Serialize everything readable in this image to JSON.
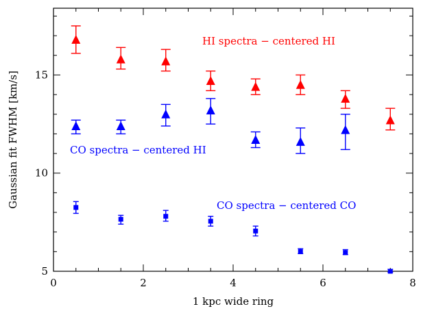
{
  "chart_data": {
    "type": "scatter",
    "xlabel": "1 kpc wide ring",
    "ylabel": "Gaussian fit FWHM [km/s]",
    "xlim": [
      0,
      8
    ],
    "ylim": [
      5,
      18.4
    ],
    "xticks": [
      0,
      2,
      4,
      6,
      8
    ],
    "yticks": [
      5,
      10,
      15
    ],
    "x_minor_step": 0.5,
    "y_minor_step": 1,
    "grid": false,
    "legend": "none",
    "annotations": [
      {
        "text": "HI spectra − centered HI",
        "color": "#ff0000",
        "series": 0
      },
      {
        "text": "CO spectra − centered HI",
        "color": "#0000ff",
        "series": 1
      },
      {
        "text": "CO spectra − centered CO",
        "color": "#0000ff",
        "series": 2
      }
    ],
    "series": [
      {
        "marker": "triangle",
        "color": "#ff0000",
        "x": [
          0.5,
          1.5,
          2.5,
          3.5,
          4.5,
          5.5,
          6.5,
          7.5
        ],
        "y": [
          16.8,
          15.8,
          15.7,
          14.7,
          14.4,
          14.5,
          13.8,
          12.7
        ],
        "ylo": [
          16.1,
          15.3,
          15.2,
          14.2,
          14.0,
          14.0,
          13.3,
          12.2
        ],
        "yhi": [
          17.5,
          16.4,
          16.3,
          15.2,
          14.8,
          15.0,
          14.2,
          13.3
        ]
      },
      {
        "marker": "triangle",
        "color": "#0000ff",
        "x": [
          0.5,
          1.5,
          2.5,
          3.5,
          4.5,
          5.5,
          6.5,
          7.5
        ],
        "y": [
          12.4,
          12.4,
          13.0,
          13.2,
          11.7,
          11.6,
          12.2,
          null
        ],
        "ylo": [
          12.0,
          12.0,
          12.4,
          12.5,
          11.3,
          11.0,
          11.2,
          null
        ],
        "yhi": [
          12.7,
          12.7,
          13.5,
          13.8,
          12.1,
          12.3,
          13.0,
          null
        ]
      },
      {
        "marker": "square",
        "color": "#0000ff",
        "x": [
          0.5,
          1.5,
          2.5,
          3.5,
          4.5,
          5.5,
          6.5,
          7.5
        ],
        "y": [
          8.25,
          7.65,
          7.8,
          7.55,
          7.05,
          6.0,
          5.95,
          5.0
        ],
        "ylo": [
          7.95,
          7.4,
          7.55,
          7.3,
          6.8,
          5.9,
          5.85,
          4.95
        ],
        "yhi": [
          8.55,
          7.85,
          8.1,
          7.8,
          7.3,
          6.15,
          6.1,
          5.1
        ]
      }
    ]
  }
}
